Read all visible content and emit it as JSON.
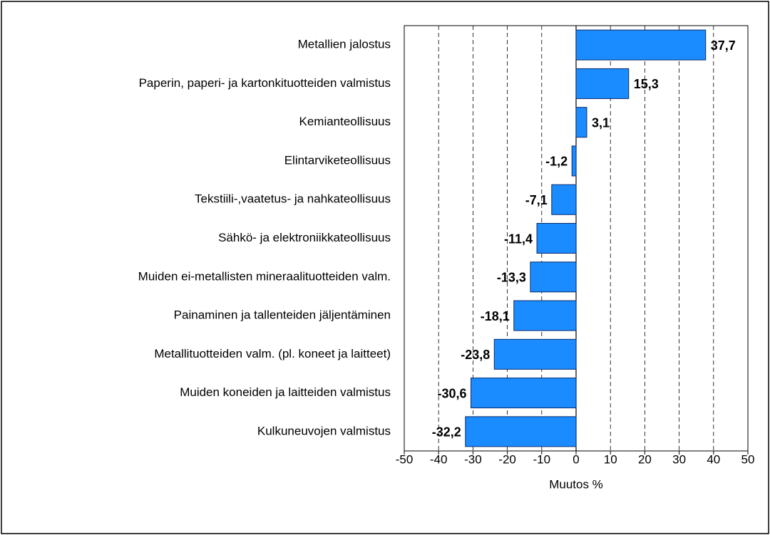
{
  "chart_data": {
    "type": "bar",
    "orientation": "horizontal",
    "x_label": "Muutos %",
    "categories": [
      "Metallien jalostus",
      "Paperin, paperi- ja kartonkituotteiden valmistus",
      "Kemianteollisuus",
      "Elintarviketeollisuus",
      "Tekstiili-,vaatetus- ja nahkateollisuus",
      "Sähkö- ja elektroniikkateollisuus",
      "Muiden ei-metallisten mineraalituotteiden valm.",
      "Painaminen ja tallenteiden jäljentäminen",
      "Metallituotteiden valm. (pl. koneet ja laitteet)",
      "Muiden koneiden ja laitteiden valmistus",
      "Kulkuneuvojen valmistus"
    ],
    "values": [
      37.7,
      15.3,
      3.1,
      -1.2,
      -7.1,
      -11.4,
      -13.3,
      -18.1,
      -23.8,
      -30.6,
      -32.2
    ],
    "value_labels": [
      "37,7",
      "15,3",
      "3,1",
      "-1,2",
      "-7,1",
      "-11,4",
      "-13,3",
      "-18,1",
      "-23,8",
      "-30,6",
      "-32,2"
    ],
    "color": "#1a8cff",
    "xlim": [
      -50,
      50
    ],
    "xticks": [
      -50,
      -40,
      -30,
      -20,
      -10,
      0,
      10,
      20,
      30,
      40,
      50
    ],
    "grid": true
  }
}
